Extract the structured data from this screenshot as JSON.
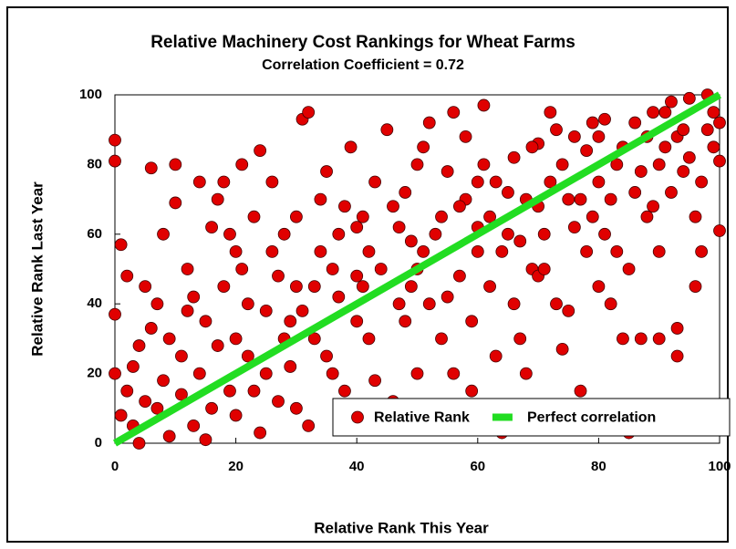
{
  "chart_data": {
    "type": "scatter",
    "title": "Relative Machinery Cost Rankings for Wheat Farms",
    "subtitle": "Correlation Coefficient = 0.72",
    "xlabel": "Relative Rank This Year",
    "ylabel": "Relative Rank Last Year",
    "xlim": [
      0,
      100
    ],
    "ylim": [
      0,
      100
    ],
    "xticks": [
      0,
      20,
      40,
      60,
      80,
      100
    ],
    "yticks": [
      0,
      20,
      40,
      60,
      80,
      100
    ],
    "grid": false,
    "legend": "lower right",
    "series": [
      {
        "name": "Relative Rank",
        "color": "#e00000",
        "mode": "markers",
        "x": [
          0,
          0,
          1,
          0,
          2,
          3,
          4,
          5,
          6,
          7,
          8,
          9,
          2,
          6,
          10,
          8,
          3,
          5,
          1,
          9,
          10,
          4,
          7,
          0,
          11,
          12,
          13,
          14,
          15,
          16,
          17,
          18,
          19,
          20,
          12,
          14,
          16,
          18,
          20,
          11,
          13,
          15,
          17,
          19,
          20,
          21,
          22,
          23,
          24,
          25,
          26,
          27,
          28,
          29,
          30,
          22,
          24,
          26,
          28,
          30,
          21,
          23,
          25,
          27,
          29,
          30,
          31,
          32,
          33,
          34,
          35,
          36,
          37,
          38,
          39,
          40,
          32,
          34,
          36,
          38,
          40,
          33,
          35,
          37,
          39,
          40,
          31,
          41,
          42,
          43,
          44,
          45,
          46,
          47,
          48,
          49,
          50,
          42,
          44,
          46,
          48,
          50,
          41,
          43,
          45,
          47,
          49,
          50,
          51,
          52,
          53,
          54,
          55,
          56,
          57,
          58,
          59,
          60,
          52,
          54,
          56,
          58,
          60,
          51,
          53,
          55,
          57,
          59,
          60,
          61,
          62,
          63,
          64,
          65,
          66,
          67,
          68,
          69,
          70,
          62,
          64,
          66,
          68,
          70,
          61,
          63,
          65,
          67,
          69,
          70,
          71,
          72,
          73,
          74,
          75,
          76,
          77,
          78,
          79,
          80,
          72,
          74,
          76,
          78,
          80,
          71,
          73,
          75,
          77,
          79,
          80,
          81,
          82,
          83,
          84,
          85,
          86,
          87,
          88,
          89,
          90,
          82,
          84,
          86,
          88,
          90,
          81,
          83,
          85,
          87,
          89,
          90,
          91,
          92,
          93,
          94,
          95,
          96,
          97,
          98,
          99,
          100,
          100,
          96,
          93,
          97,
          99,
          94,
          92,
          95,
          98,
          91,
          100,
          93
        ],
        "values": [
          87,
          81,
          57,
          37,
          15,
          5,
          28,
          45,
          79,
          10,
          18,
          2,
          48,
          33,
          69,
          60,
          22,
          12,
          8,
          30,
          80,
          0,
          40,
          20,
          25,
          50,
          5,
          75,
          35,
          62,
          70,
          75,
          15,
          30,
          38,
          20,
          10,
          45,
          55,
          14,
          42,
          1,
          28,
          60,
          8,
          80,
          40,
          65,
          84,
          20,
          55,
          12,
          60,
          35,
          45,
          25,
          3,
          75,
          30,
          65,
          50,
          15,
          38,
          48,
          22,
          10,
          93,
          95,
          30,
          55,
          78,
          20,
          42,
          68,
          85,
          35,
          5,
          70,
          50,
          15,
          62,
          45,
          25,
          60,
          8,
          48,
          38,
          65,
          30,
          75,
          50,
          90,
          12,
          40,
          72,
          58,
          20,
          55,
          8,
          68,
          35,
          80,
          45,
          18,
          5,
          62,
          45,
          50,
          85,
          92,
          60,
          30,
          78,
          95,
          48,
          70,
          15,
          55,
          40,
          65,
          20,
          88,
          75,
          55,
          10,
          42,
          68,
          35,
          62,
          97,
          45,
          75,
          3,
          60,
          82,
          30,
          70,
          50,
          86,
          65,
          55,
          40,
          20,
          68,
          80,
          25,
          72,
          58,
          85,
          48,
          60,
          95,
          40,
          80,
          38,
          88,
          70,
          55,
          92,
          75,
          75,
          27,
          62,
          84,
          45,
          50,
          90,
          70,
          15,
          65,
          88,
          93,
          70,
          55,
          85,
          3,
          92,
          78,
          65,
          95,
          55,
          40,
          30,
          72,
          88,
          80,
          60,
          80,
          50,
          30,
          68,
          30,
          95,
          98,
          88,
          78,
          99,
          65,
          75,
          90,
          95,
          81,
          61,
          45,
          25,
          55,
          85,
          90,
          72,
          82,
          100,
          85,
          92,
          33
        ]
      },
      {
        "name": "Perfect correlation",
        "color": "#22dd22",
        "mode": "line",
        "x": [
          0,
          100
        ],
        "values": [
          0,
          100
        ]
      }
    ]
  }
}
